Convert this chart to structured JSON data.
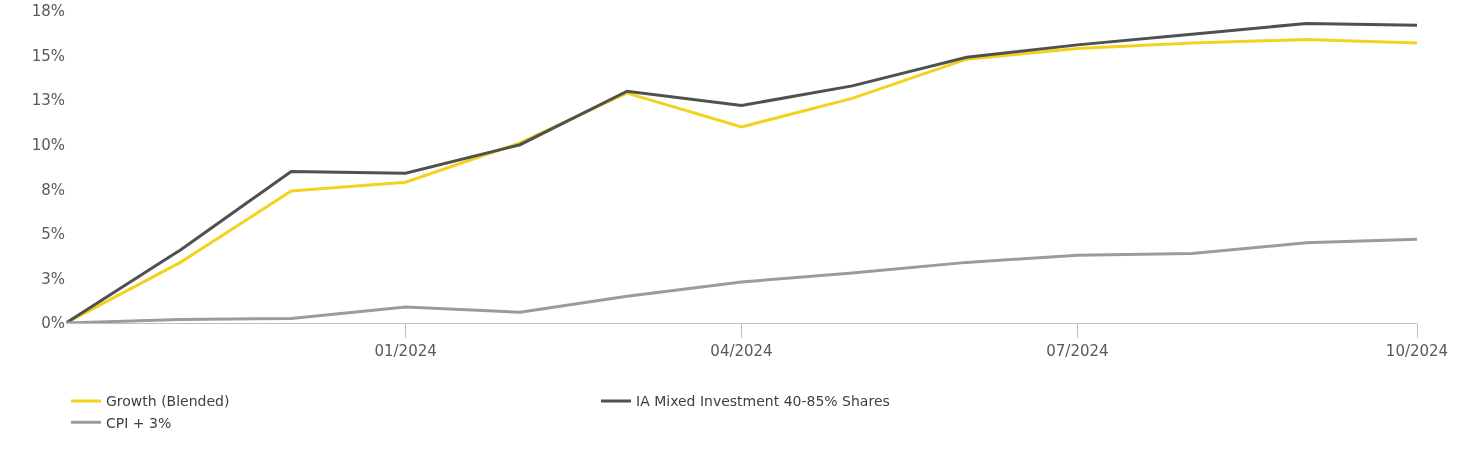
{
  "chart_data": {
    "type": "line",
    "x": [
      "2023-10",
      "2023-11",
      "2023-12",
      "2024-01",
      "2024-02",
      "2024-03",
      "2024-04",
      "2024-05",
      "2024-06",
      "2024-07",
      "2024-08",
      "2024-09",
      "2024-10"
    ],
    "series": [
      {
        "name": "Growth (Blended)",
        "color": "#f2d21c",
        "values": [
          0,
          3.4,
          7.4,
          7.9,
          10.1,
          12.9,
          11.0,
          12.6,
          14.8,
          15.4,
          15.7,
          15.9,
          15.7
        ]
      },
      {
        "name": "IA Mixed Investment 40-85% Shares",
        "color": "#505050",
        "values": [
          0,
          4.1,
          8.5,
          8.4,
          10.0,
          13.0,
          12.2,
          13.3,
          14.9,
          15.6,
          16.2,
          16.8,
          16.7
        ]
      },
      {
        "name": "CPI + 3%",
        "color": "#9b9b9b",
        "values": [
          0,
          0.2,
          0.25,
          0.9,
          0.6,
          1.5,
          2.3,
          2.8,
          3.4,
          3.8,
          3.9,
          4.5,
          4.7
        ]
      }
    ],
    "xlim": [
      "2023-10",
      "2024-10"
    ],
    "xticks": [
      {
        "value": "2024-01",
        "label": "01/2024"
      },
      {
        "value": "2024-04",
        "label": "04/2024"
      },
      {
        "value": "2024-07",
        "label": "07/2024"
      },
      {
        "value": "2024-10",
        "label": "10/2024"
      }
    ],
    "ylim": [
      0,
      17.5
    ],
    "yticks": [
      {
        "value": 0,
        "label": "0%"
      },
      {
        "value": 2.5,
        "label": "3%"
      },
      {
        "value": 5,
        "label": "5%"
      },
      {
        "value": 7.5,
        "label": "8%"
      },
      {
        "value": 10,
        "label": "10%"
      },
      {
        "value": 12.5,
        "label": "13%"
      },
      {
        "value": 15,
        "label": "15%"
      },
      {
        "value": 17.5,
        "label": "18%"
      }
    ],
    "grid": false,
    "legend": "bottom",
    "marker": "none",
    "line_style": "solid"
  }
}
